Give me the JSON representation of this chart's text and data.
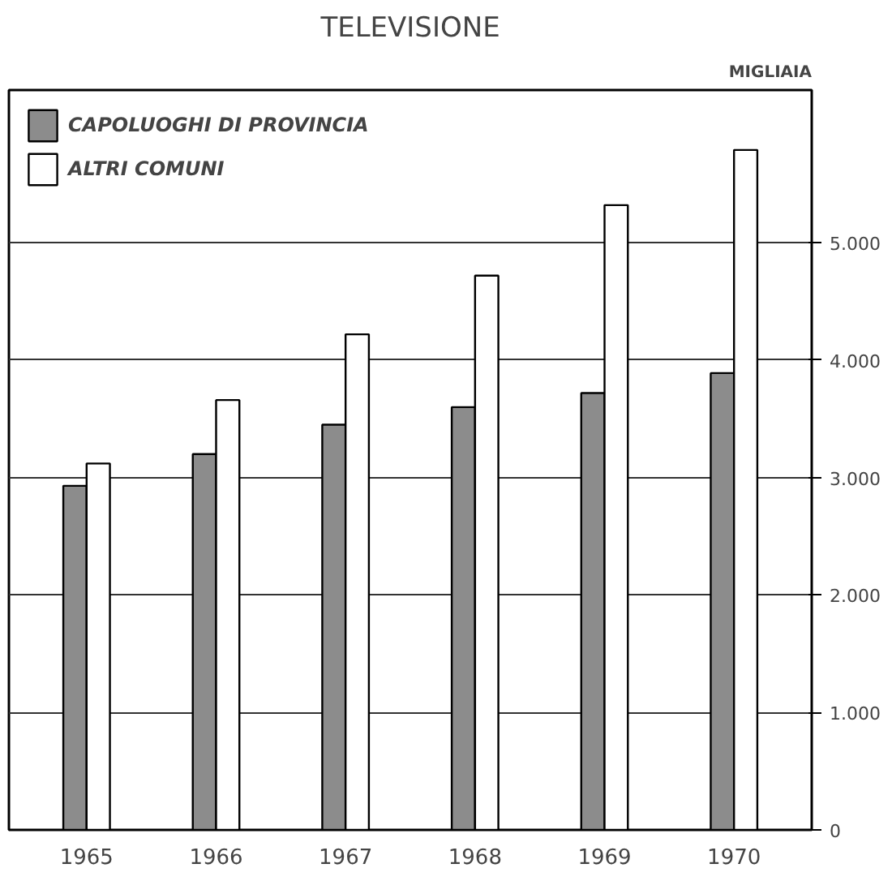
{
  "chart_data": {
    "type": "bar",
    "title": "TELEVISIONE",
    "ylabel": "MIGLIAIA",
    "categories": [
      "1965",
      "1966",
      "1967",
      "1968",
      "1969",
      "1970"
    ],
    "series": [
      {
        "name": "CAPOLUOGHI DI PROVINCIA",
        "color": "#8c8c8c",
        "values": [
          2930,
          3200,
          3450,
          3600,
          3720,
          3890
        ]
      },
      {
        "name": "ALTRI COMUNI",
        "color": "#ffffff",
        "values": [
          3120,
          3660,
          4220,
          4720,
          5320,
          5790
        ]
      }
    ],
    "ylim": [
      0,
      6300
    ],
    "yticks": [
      0,
      {
        "value": 1000,
        "label": "1.000"
      },
      {
        "value": 2000,
        "label": "2.000"
      },
      {
        "value": 3000,
        "label": "3.000"
      },
      {
        "value": 4000,
        "label": "4.000"
      },
      {
        "value": 5000,
        "label": "5.000"
      }
    ],
    "grid": "y",
    "legend": "top left"
  }
}
